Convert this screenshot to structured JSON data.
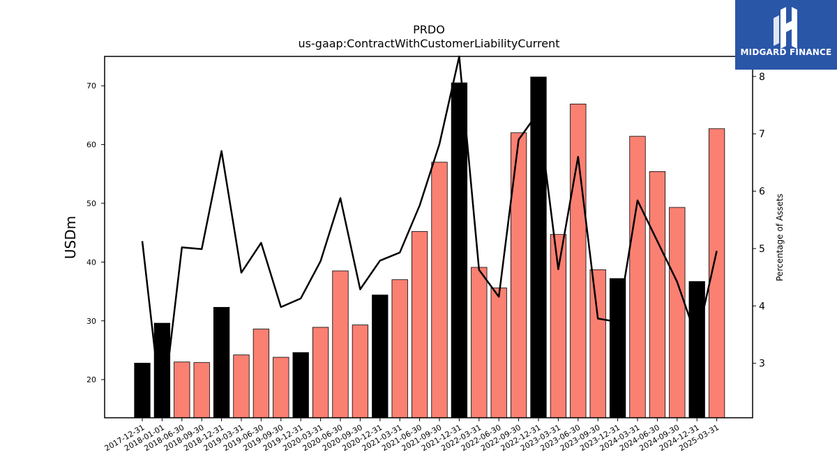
{
  "chart_data": {
    "type": "bar",
    "title": "PRDO",
    "subtitle": "us-gaap:ContractWithCustomerLiabilityCurrent",
    "ylabel": "USDm",
    "y2label": "Percentage of Assets",
    "ylim": [
      13.5,
      75
    ],
    "y2lim": [
      2.05,
      8.35
    ],
    "yticks": [
      20,
      30,
      40,
      50,
      60,
      70
    ],
    "y2ticks": [
      3,
      4,
      5,
      6,
      7,
      8
    ],
    "categories": [
      "2017-12-31",
      "2018-01-01",
      "2018-06-30",
      "2018-09-30",
      "2018-12-31",
      "2019-03-31",
      "2019-06-30",
      "2019-09-30",
      "2019-12-31",
      "2020-03-31",
      "2020-06-30",
      "2020-09-30",
      "2020-12-31",
      "2021-03-31",
      "2021-06-30",
      "2021-09-30",
      "2021-12-31",
      "2022-03-31",
      "2022-06-30",
      "2022-09-30",
      "2022-12-31",
      "2023-03-31",
      "2023-06-30",
      "2023-09-30",
      "2023-12-31",
      "2024-03-31",
      "2024-06-30",
      "2024-09-30",
      "2024-12-31",
      "2025-03-31"
    ],
    "series": [
      {
        "type": "bar",
        "values": [
          22.8,
          29.6,
          23.0,
          22.9,
          32.3,
          24.2,
          28.6,
          23.8,
          24.6,
          28.9,
          38.5,
          29.3,
          34.4,
          37.0,
          45.2,
          57.0,
          70.5,
          39.1,
          35.6,
          62.0,
          71.5,
          44.7,
          66.9,
          38.7,
          37.2,
          61.4,
          55.4,
          49.3,
          36.7,
          62.7
        ],
        "annual": [
          true,
          true,
          false,
          false,
          true,
          false,
          false,
          false,
          true,
          false,
          false,
          false,
          true,
          false,
          false,
          false,
          true,
          false,
          false,
          false,
          true,
          false,
          false,
          false,
          true,
          false,
          false,
          false,
          true,
          false
        ],
        "color_annual": "#000000",
        "color_quarterly": "#fa8072"
      },
      {
        "type": "line",
        "axis": "right",
        "values": [
          5.13,
          2.1,
          5.02,
          4.99,
          6.7,
          4.58,
          5.1,
          3.98,
          4.13,
          4.78,
          5.88,
          4.29,
          4.79,
          4.93,
          5.75,
          6.82,
          8.35,
          4.63,
          4.16,
          6.9,
          7.38,
          4.64,
          6.6,
          3.78,
          3.72,
          5.84,
          5.13,
          4.42,
          3.42,
          4.96
        ],
        "color": "#000000"
      }
    ],
    "grid": false,
    "legend": "none"
  },
  "logo": {
    "text": "MIDGARD FINANCE",
    "background": "#2a56a8"
  }
}
